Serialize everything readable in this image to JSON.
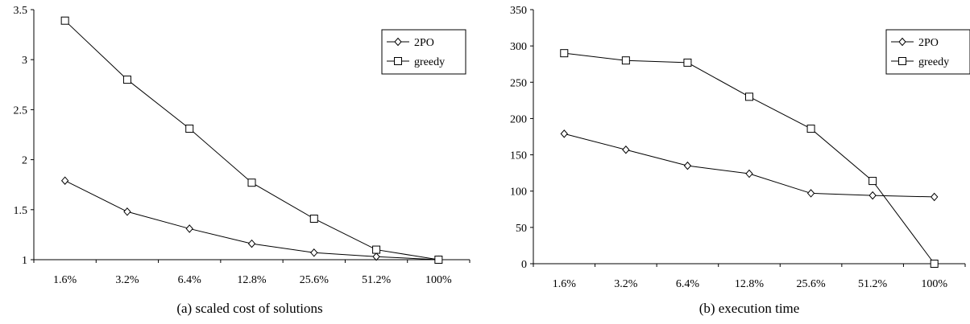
{
  "chart_data": [
    {
      "type": "line",
      "title": "",
      "caption": "(a) scaled cost of solutions",
      "xlabel": "",
      "ylabel": "",
      "categories": [
        "1.6%",
        "3.2%",
        "6.4%",
        "12.8%",
        "25.6%",
        "51.2%",
        "100%"
      ],
      "ylim": [
        1,
        3.5
      ],
      "yticks": [
        "1",
        "1.5",
        "2",
        "2.5",
        "3",
        "3.5"
      ],
      "legend_position": "top-right",
      "grid": false,
      "series": [
        {
          "name": "2PO",
          "marker": "diamond",
          "values": [
            1.79,
            1.48,
            1.31,
            1.16,
            1.07,
            1.03,
            1.0
          ]
        },
        {
          "name": "greedy",
          "marker": "square",
          "values": [
            3.39,
            2.8,
            2.31,
            1.77,
            1.41,
            1.1,
            1.0
          ]
        }
      ]
    },
    {
      "type": "line",
      "title": "",
      "caption": "(b) execution time",
      "xlabel": "",
      "ylabel": "",
      "categories": [
        "1.6%",
        "3.2%",
        "6.4%",
        "12.8%",
        "25.6%",
        "51.2%",
        "100%"
      ],
      "ylim": [
        0,
        350
      ],
      "yticks": [
        "0",
        "50",
        "100",
        "150",
        "200",
        "250",
        "300",
        "350"
      ],
      "legend_position": "top-right",
      "grid": false,
      "series": [
        {
          "name": "2PO",
          "marker": "diamond",
          "values": [
            179,
            157,
            135,
            124,
            97,
            94,
            92
          ]
        },
        {
          "name": "greedy",
          "marker": "square",
          "values": [
            290,
            280,
            277,
            230,
            186,
            114,
            0
          ]
        }
      ]
    }
  ]
}
